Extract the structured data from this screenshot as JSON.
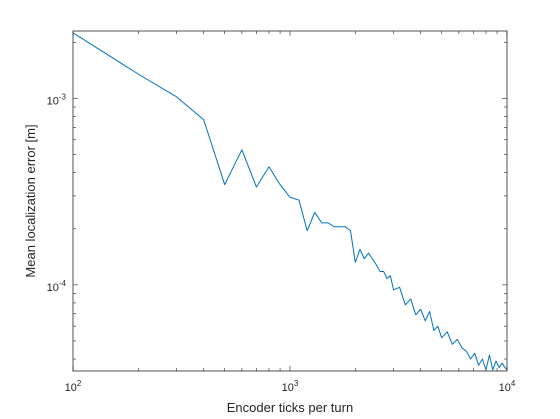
{
  "chart_data": {
    "type": "line",
    "title": "",
    "xlabel": "Encoder ticks per turn",
    "ylabel": "Mean localization error [m]",
    "xscale": "log",
    "yscale": "log",
    "xlim": [
      100,
      10000
    ],
    "ylim": [
      3.45e-05,
      0.0023
    ],
    "grid": false,
    "box": true,
    "line_color": "#0072BD",
    "x_ticks": [
      {
        "value": 100,
        "base": "10",
        "exp": "2"
      },
      {
        "value": 1000,
        "base": "10",
        "exp": "3"
      },
      {
        "value": 10000,
        "base": "10",
        "exp": "4"
      }
    ],
    "y_ticks": [
      {
        "value": 0.0001,
        "base": "10",
        "exp": "-4"
      },
      {
        "value": 0.001,
        "base": "10",
        "exp": "-3"
      }
    ],
    "series": [
      {
        "x": [
          100,
          200,
          300,
          400,
          500,
          600,
          700,
          800,
          900,
          1000,
          1100,
          1200,
          1300,
          1400,
          1500,
          1600,
          1700,
          1800,
          1900,
          2000,
          2100,
          2200,
          2300,
          2400,
          2500,
          2600,
          2700,
          2800,
          2900,
          3000,
          3200,
          3400,
          3600,
          3800,
          4000,
          4200,
          4400,
          4600,
          4800,
          5000,
          5300,
          5600,
          5900,
          6200,
          6500,
          6800,
          7100,
          7400,
          7700,
          8000,
          8300,
          8600,
          8900,
          9200,
          9500,
          9800,
          10000
        ],
        "y": [
          0.00225,
          0.00135,
          0.00102,
          0.00077,
          0.000345,
          0.00053,
          0.000335,
          0.00043,
          0.000345,
          0.000295,
          0.000285,
          0.000195,
          0.000245,
          0.000215,
          0.000215,
          0.000205,
          0.000205,
          0.000205,
          0.000195,
          0.000132,
          0.000155,
          0.000138,
          0.000148,
          0.000138,
          0.000128,
          0.000118,
          0.000118,
          0.000108,
          0.000112,
          9.4e-05,
          9.7e-05,
          7.8e-05,
          8.4e-05,
          6.9e-05,
          7.4e-05,
          6.4e-05,
          7.2e-05,
          5.7e-05,
          6e-05,
          5.2e-05,
          5.6e-05,
          4.8e-05,
          5.1e-05,
          4.6e-05,
          4.4e-05,
          4e-05,
          4.3e-05,
          3.7e-05,
          4e-05,
          3.5e-05,
          4.2e-05,
          3.5e-05,
          3.9e-05,
          3.6e-05,
          3.8e-05,
          3.6e-05,
          3.5e-05
        ]
      }
    ]
  }
}
